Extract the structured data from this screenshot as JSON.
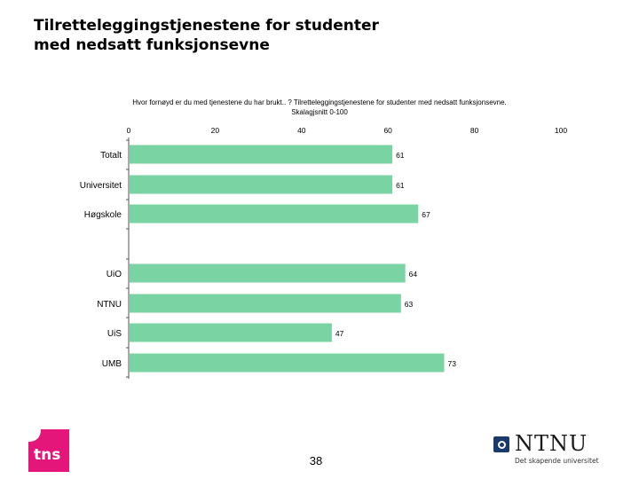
{
  "header": {
    "title_line1": "Tilretteleggingstjenestene for studenter",
    "title_line2": "med nedsatt funksjonsevne"
  },
  "subtitle": {
    "line1": "Hvor fornøyd er du med tjenestene du har brukt.. ? Tilretteleggingstjenestene for studenter med nedsatt funksjonsevne.",
    "line2": "Skalagjsnitt 0-100"
  },
  "chart_data": {
    "type": "bar",
    "orientation": "horizontal",
    "categories": [
      "Totalt",
      "Universitet",
      "Høgskole",
      "UiO",
      "NTNU",
      "UiS",
      "UMB"
    ],
    "values": [
      61,
      61,
      67,
      64,
      63,
      47,
      73
    ],
    "xlim": [
      0,
      100
    ],
    "xticks": [
      0,
      20,
      40,
      60,
      80,
      100
    ],
    "bar_color": "#79d3a2",
    "grid": false
  },
  "footer": {
    "logo_text": "tns",
    "page_number": "38",
    "ntnu_name": "NTNU",
    "ntnu_tagline": "Det skapende universitet"
  },
  "colors": {
    "tns_logo": "#e51679",
    "ntnu_blue": "#1a3a6b"
  }
}
